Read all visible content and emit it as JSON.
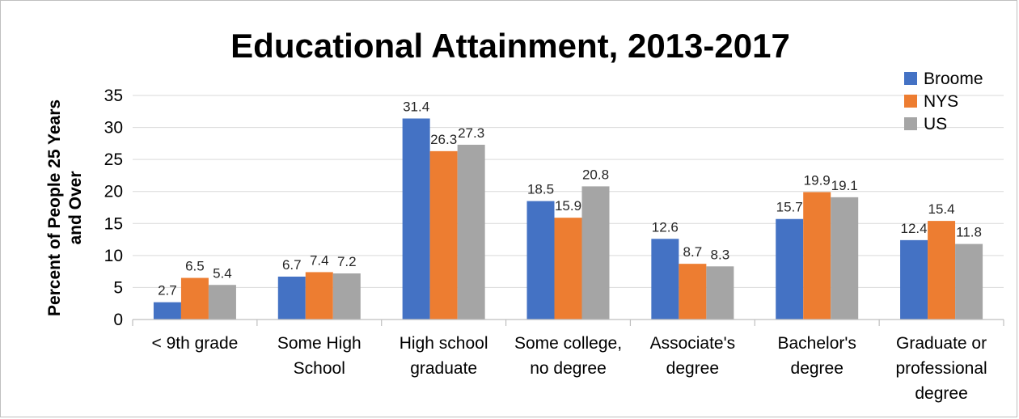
{
  "chart_data": {
    "type": "bar",
    "title": "Educational Attainment, 2013-2017",
    "ylabel": "Percent of People 25 Years and Over",
    "xlabel": "",
    "ylim": [
      0,
      35
    ],
    "yticks": [
      0,
      5,
      10,
      15,
      20,
      25,
      30,
      35
    ],
    "grid": true,
    "legend_position": "top-right",
    "categories": [
      [
        "< 9th grade"
      ],
      [
        "Some High",
        "School"
      ],
      [
        "High school",
        "graduate"
      ],
      [
        "Some college,",
        "no degree"
      ],
      [
        "Associate's",
        "degree"
      ],
      [
        "Bachelor's",
        "degree"
      ],
      [
        "Graduate or",
        "professional",
        "degree"
      ]
    ],
    "series": [
      {
        "name": "Broome",
        "color": "#4472c4",
        "values": [
          2.7,
          6.7,
          31.4,
          18.5,
          12.6,
          15.7,
          12.4
        ]
      },
      {
        "name": "NYS",
        "color": "#ed7d31",
        "values": [
          6.5,
          7.4,
          26.3,
          15.9,
          8.7,
          19.9,
          15.4
        ]
      },
      {
        "name": "US",
        "color": "#a5a5a5",
        "values": [
          5.4,
          7.2,
          27.3,
          20.8,
          8.3,
          19.1,
          11.8
        ]
      }
    ]
  }
}
